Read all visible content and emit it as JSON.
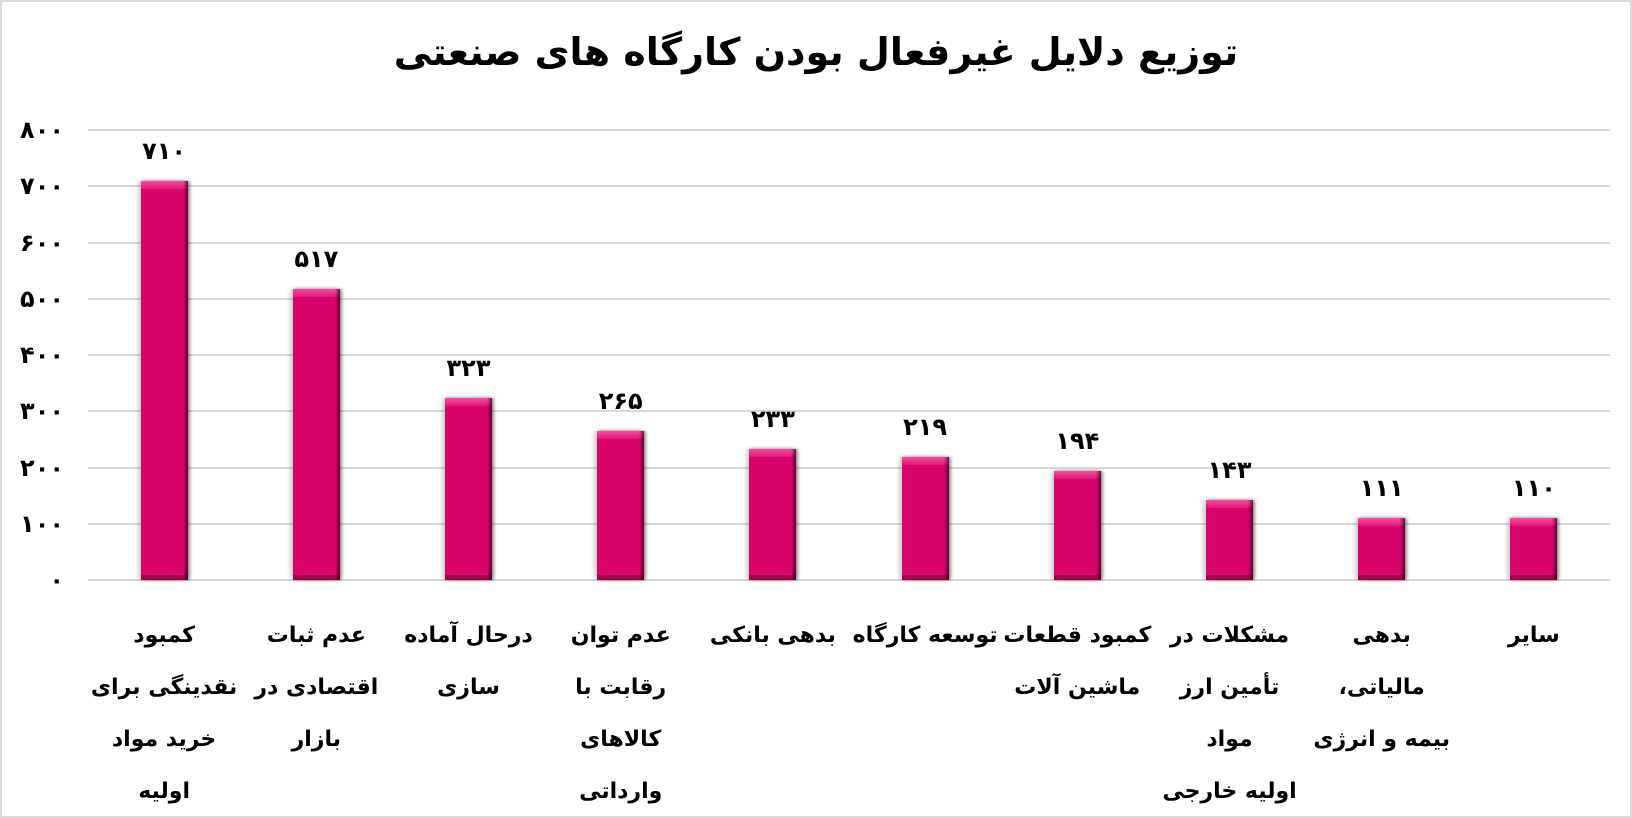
{
  "chart_data": {
    "type": "bar",
    "title": "توزیع دلایل غیرفعال بودن کارگاه های صنعتی",
    "xlabel": "",
    "ylabel": "",
    "ylim": [
      0,
      800
    ],
    "grid": true,
    "legend": null,
    "yticks": [
      0,
      100,
      200,
      300,
      400,
      500,
      600,
      700,
      800
    ],
    "ytick_labels": [
      "۰",
      "۱۰۰",
      "۲۰۰",
      "۳۰۰",
      "۴۰۰",
      "۵۰۰",
      "۶۰۰",
      "۷۰۰",
      "۸۰۰"
    ],
    "categories": [
      "کمبود نقدینگی برای خرید مواد اولیه",
      "عدم ثبات اقتصادی در بازار",
      "درحال آماده سازی",
      "عدم توان رقابت با کالاهای وارداتی",
      "بدهی بانکی",
      "توسعه کارگاه",
      "کمبود قطعات ماشین آلات",
      "مشکلات در تأمین ارز مواد اولیه خارجی",
      "بدهی مالیاتی، بیمه و انرژی",
      "سایر"
    ],
    "values": [
      710,
      517,
      323,
      265,
      233,
      219,
      194,
      143,
      111,
      110
    ],
    "value_labels": [
      "۷۱۰",
      "۵۱۷",
      "۳۲۳",
      "۲۶۵",
      "۲۳۳",
      "۲۱۹",
      "۱۹۴",
      "۱۴۳",
      "۱۱۱",
      "۱۱۰"
    ],
    "bar_color": "#d9046a"
  },
  "chart": {
    "title": "توزیع دلایل غیرفعال بودن کارگاه های صنعتی",
    "y_axis": [
      "۰",
      "۱۰۰",
      "۲۰۰",
      "۳۰۰",
      "۴۰۰",
      "۵۰۰",
      "۶۰۰",
      "۷۰۰",
      "۸۰۰"
    ],
    "bars": [
      {
        "value": "۷۱۰",
        "lines": [
          "کمبود",
          "نقدینگی برای",
          "خرید مواد",
          "اولیه"
        ]
      },
      {
        "value": "۵۱۷",
        "lines": [
          "عدم ثبات",
          "اقتصادی در",
          "بازار"
        ]
      },
      {
        "value": "۳۲۳",
        "lines": [
          "درحال آماده",
          "سازی"
        ]
      },
      {
        "value": "۲۶۵",
        "lines": [
          "عدم توان",
          "رقابت با",
          "کالاهای",
          "وارداتی"
        ]
      },
      {
        "value": "۲۳۳",
        "lines": [
          "بدهی بانکی"
        ]
      },
      {
        "value": "۲۱۹",
        "lines": [
          "توسعه کارگاه"
        ]
      },
      {
        "value": "۱۹۴",
        "lines": [
          "کمبود قطعات",
          "ماشین آلات"
        ]
      },
      {
        "value": "۱۴۳",
        "lines": [
          "مشکلات در",
          "تأمین ارز مواد",
          "اولیه خارجی"
        ]
      },
      {
        "value": "۱۱۱",
        "lines": [
          "بدهی مالیاتی،",
          "بیمه و انرژی"
        ]
      },
      {
        "value": "۱۱۰",
        "lines": [
          "سایر"
        ]
      }
    ]
  }
}
